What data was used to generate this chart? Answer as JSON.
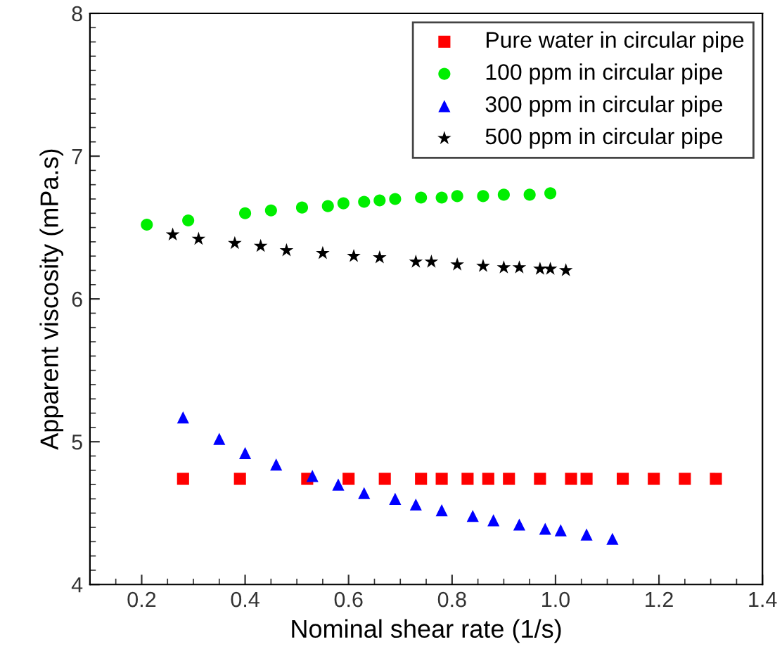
{
  "chart_data": {
    "type": "scatter",
    "xlabel": "Nominal shear rate (1/s)",
    "ylabel": "Apparent viscosity (mPa.s)",
    "xlim": [
      0.1,
      1.4
    ],
    "ylim": [
      4,
      8
    ],
    "xticks": [
      0.2,
      0.4,
      0.6,
      0.8,
      {
        "value": 1.0,
        "label": "1.0"
      },
      1.2,
      1.4
    ],
    "yticks": [
      4,
      5,
      6,
      7,
      8
    ],
    "grid": false,
    "legend": "top right",
    "series": [
      {
        "name": "Pure water in circular pipe",
        "color": "#ff0000",
        "marker": "square",
        "x": [
          0.28,
          0.39,
          0.52,
          0.6,
          0.67,
          0.74,
          0.78,
          0.83,
          0.87,
          0.91,
          0.97,
          1.03,
          1.06,
          1.13,
          1.19,
          1.25,
          1.31
        ],
        "values": [
          4.74,
          4.74,
          4.74,
          4.74,
          4.74,
          4.74,
          4.74,
          4.74,
          4.74,
          4.74,
          4.74,
          4.74,
          4.74,
          4.74,
          4.74,
          4.74,
          4.74
        ]
      },
      {
        "name": "100 ppm in circular pipe",
        "color": "#00ee00",
        "marker": "circle",
        "x": [
          0.21,
          0.29,
          0.4,
          0.45,
          0.51,
          0.56,
          0.59,
          0.63,
          0.66,
          0.69,
          0.74,
          0.78,
          0.81,
          0.86,
          0.9,
          0.95,
          0.99
        ],
        "values": [
          6.52,
          6.55,
          6.6,
          6.62,
          6.64,
          6.65,
          6.67,
          6.68,
          6.69,
          6.7,
          6.71,
          6.71,
          6.72,
          6.72,
          6.73,
          6.73,
          6.74
        ]
      },
      {
        "name": "300 ppm in circular pipe",
        "color": "#0000ff",
        "marker": "triangle",
        "x": [
          0.28,
          0.35,
          0.4,
          0.46,
          0.53,
          0.58,
          0.63,
          0.69,
          0.73,
          0.78,
          0.84,
          0.88,
          0.93,
          0.98,
          1.01,
          1.06,
          1.11
        ],
        "values": [
          5.17,
          5.02,
          4.92,
          4.84,
          4.76,
          4.7,
          4.64,
          4.6,
          4.56,
          4.52,
          4.48,
          4.45,
          4.42,
          4.39,
          4.38,
          4.35,
          4.32
        ]
      },
      {
        "name": "500 ppm in circular pipe",
        "color": "#000000",
        "marker": "star",
        "x": [
          0.26,
          0.31,
          0.38,
          0.43,
          0.48,
          0.55,
          0.61,
          0.66,
          0.73,
          0.76,
          0.81,
          0.86,
          0.9,
          0.93,
          0.97,
          0.99,
          1.02
        ],
        "values": [
          6.45,
          6.42,
          6.39,
          6.37,
          6.34,
          6.32,
          6.3,
          6.29,
          6.26,
          6.26,
          6.24,
          6.23,
          6.22,
          6.22,
          6.21,
          6.21,
          6.2
        ]
      }
    ]
  }
}
